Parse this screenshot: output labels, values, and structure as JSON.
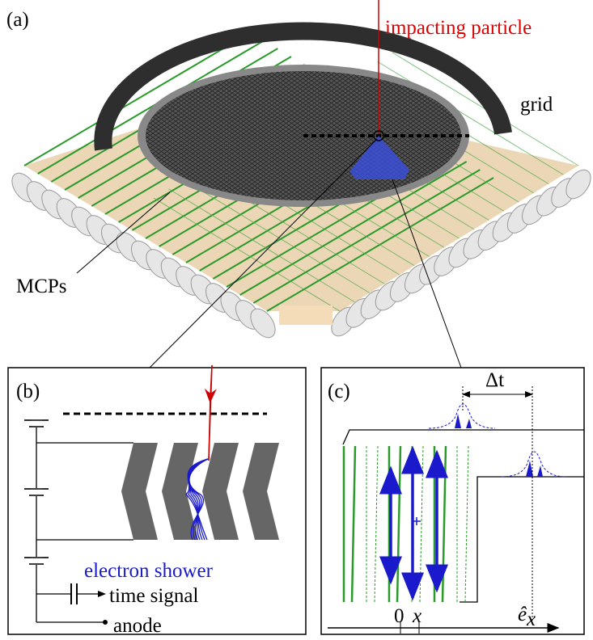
{
  "panels": {
    "a": {
      "label": "(a)",
      "impacting_particle": "impacting particle",
      "grid": "grid",
      "mcps": "MCPs"
    },
    "b": {
      "label": "(b)",
      "electron_shower": "electron shower",
      "time_signal": "time signal",
      "anode": "anode"
    },
    "c": {
      "label": "(c)",
      "delta_t": "Δt",
      "origin": "0",
      "x": "x",
      "axis_base": "ê",
      "axis_sub": "x"
    }
  }
}
